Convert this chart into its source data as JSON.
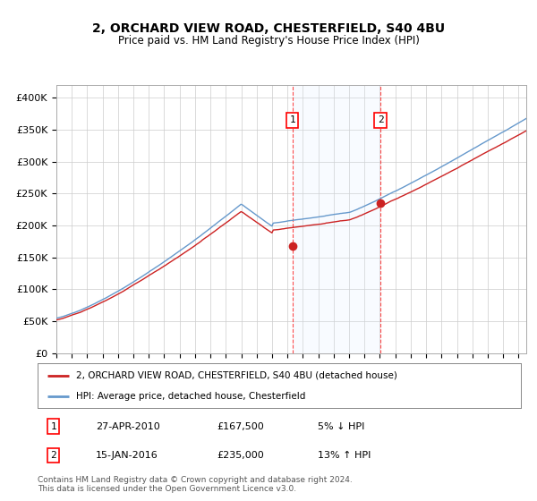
{
  "title": "2, ORCHARD VIEW ROAD, CHESTERFIELD, S40 4BU",
  "subtitle": "Price paid vs. HM Land Registry's House Price Index (HPI)",
  "ylim": [
    0,
    420000
  ],
  "yticks": [
    0,
    50000,
    100000,
    150000,
    200000,
    250000,
    300000,
    350000,
    400000
  ],
  "ytick_labels": [
    "£0",
    "£50K",
    "£100K",
    "£150K",
    "£200K",
    "£250K",
    "£300K",
    "£350K",
    "£400K"
  ],
  "hpi_color": "#6699cc",
  "price_color": "#cc2222",
  "marker_color": "#cc2222",
  "sale1_year": 2010.32,
  "sale1_price": 167500,
  "sale2_year": 2016.04,
  "sale2_price": 235000,
  "legend_label1": "2, ORCHARD VIEW ROAD, CHESTERFIELD, S40 4BU (detached house)",
  "legend_label2": "HPI: Average price, detached house, Chesterfield",
  "table_row1": [
    "1",
    "27-APR-2010",
    "£167,500",
    "5% ↓ HPI"
  ],
  "table_row2": [
    "2",
    "15-JAN-2016",
    "£235,000",
    "13% ↑ HPI"
  ],
  "footer": "Contains HM Land Registry data © Crown copyright and database right 2024.\nThis data is licensed under the Open Government Licence v3.0.",
  "bg_color": "#ffffff",
  "grid_color": "#cccccc",
  "shade_color": "#ddeeff"
}
